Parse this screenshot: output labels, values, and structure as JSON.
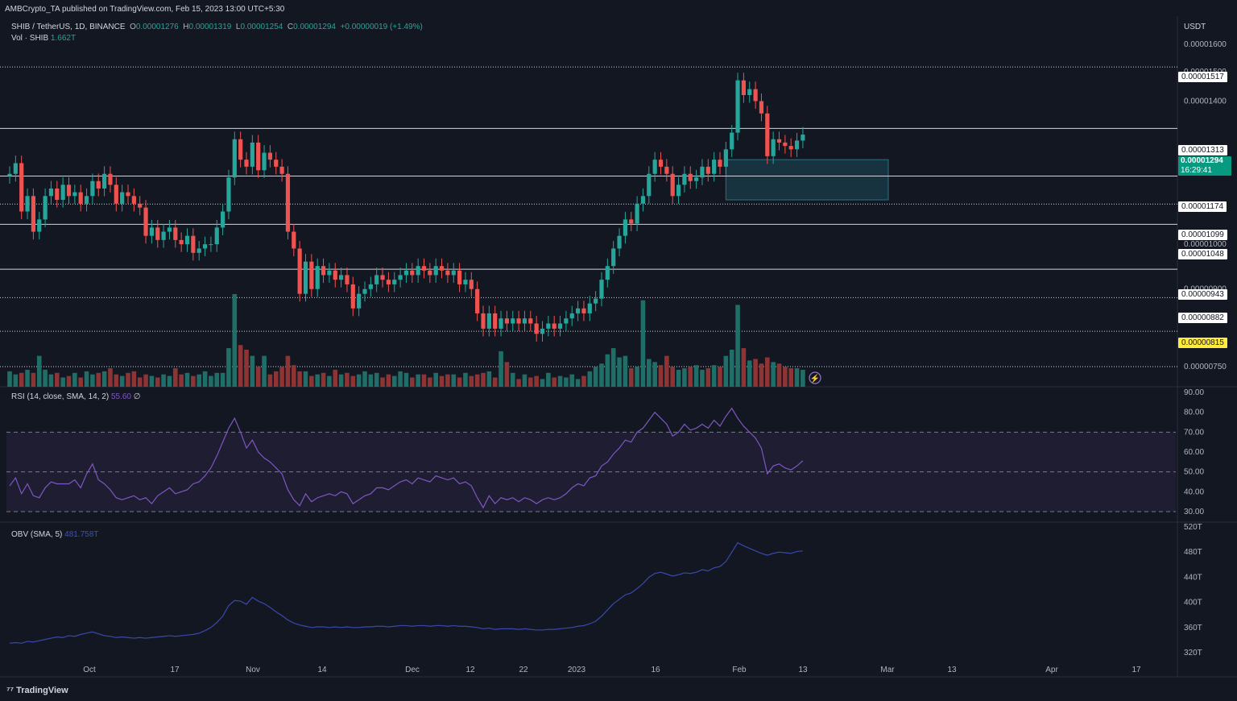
{
  "header": {
    "published": "AMBCrypto_TA published on TradingView.com, Feb 15, 2023 13:00 UTC+5:30",
    "symbol": "SHIB / TetherUS, 1D, BINANCE",
    "o_label": "O",
    "o": "0.00001276",
    "h_label": "H",
    "h": "0.00001319",
    "l_label": "L",
    "l": "0.00001254",
    "c_label": "C",
    "c": "0.00001294",
    "change": "+0.00000019 (+1.49%)",
    "vol_label": "Vol · SHIB",
    "vol": "1.662T",
    "rsi_label": "RSI (14, close, SMA, 14, 2)",
    "rsi_value": "55.60",
    "rsi_extra": "∅",
    "obv_label": "OBV (SMA, 5)",
    "obv_value": "481.758T",
    "currency": "USDT",
    "brand": "TradingView"
  },
  "colors": {
    "background": "#131722",
    "up": "#26a69a",
    "down": "#ef5350",
    "rsi_line": "#7e57c2",
    "obv_line": "#3949ab",
    "zone": "#1e4a5a"
  },
  "price_tags": {
    "levels": [
      "0.00001517",
      "0.00001313",
      "0.00001174",
      "0.00001099",
      "0.00001048",
      "0.00000943",
      "0.00000882",
      "0.00000815"
    ],
    "current": "0.00001294",
    "countdown": "16:29:41"
  },
  "chart_data": [
    {
      "type": "candlestick",
      "yticks": [
        "0.00001600",
        "0.00001500",
        "0.00001400",
        "0.00001200",
        "0.00001000",
        "0.00000900",
        "0.00000750"
      ],
      "xticks": [
        "Oct",
        "17",
        "Nov",
        "14",
        "Dec",
        "12",
        "22",
        "2023",
        "16",
        "Feb",
        "13",
        "Mar",
        "13",
        "Apr",
        "17"
      ],
      "horizontal_levels": [
        {
          "value": 1.517e-05,
          "style": "dotted"
        },
        {
          "value": 1.313e-05,
          "style": "solid"
        },
        {
          "value": 1.174e-05,
          "style": "solid"
        },
        {
          "value": 1.099e-05,
          "style": "dotted"
        },
        {
          "value": 1.048e-05,
          "style": "solid"
        },
        {
          "value": 9.43e-06,
          "style": "solid"
        },
        {
          "value": 8.82e-06,
          "style": "dotted"
        },
        {
          "value": 8.15e-06,
          "style": "dotted"
        },
        {
          "value": 7.5e-06,
          "style": "dotted"
        }
      ],
      "zone": {
        "from": "2023-01-28",
        "to": "2023-03-01",
        "low": 1.11e-05,
        "high": 1.22e-05
      },
      "close": [
        1.18,
        1.21,
        1.08,
        1.12,
        1.03,
        1.06,
        1.12,
        1.14,
        1.11,
        1.15,
        1.12,
        1.13,
        1.1,
        1.12,
        1.16,
        1.14,
        1.18,
        1.15,
        1.1,
        1.13,
        1.12,
        1.1,
        1.09,
        1.02,
        1.04,
        1.01,
        1.03,
        1.04,
        1.01,
        1.0,
        1.02,
        0.98,
        0.99,
        1.0,
        1.0,
        1.04,
        1.08,
        1.17,
        1.28,
        1.22,
        1.2,
        1.27,
        1.19,
        1.24,
        1.22,
        1.2,
        1.18,
        1.03,
        0.99,
        0.89,
        0.96,
        0.9,
        0.95,
        0.93,
        0.94,
        0.92,
        0.93,
        0.91,
        0.86,
        0.89,
        0.9,
        0.91,
        0.93,
        0.92,
        0.91,
        0.92,
        0.93,
        0.94,
        0.93,
        0.95,
        0.94,
        0.93,
        0.95,
        0.94,
        0.93,
        0.94,
        0.91,
        0.92,
        0.9,
        0.85,
        0.82,
        0.85,
        0.82,
        0.84,
        0.83,
        0.84,
        0.83,
        0.84,
        0.83,
        0.81,
        0.82,
        0.83,
        0.82,
        0.83,
        0.84,
        0.85,
        0.86,
        0.85,
        0.87,
        0.88,
        0.92,
        0.95,
        0.99,
        1.02,
        1.06,
        1.05,
        1.1,
        1.12,
        1.18,
        1.22,
        1.2,
        1.18,
        1.12,
        1.15,
        1.18,
        1.16,
        1.17,
        1.2,
        1.18,
        1.22,
        1.2,
        1.25,
        1.3,
        1.47,
        1.42,
        1.44,
        1.4,
        1.36,
        1.23,
        1.28,
        1.27,
        1.26,
        1.25,
        1.276,
        1.294
      ],
      "volume": [
        1.0,
        0.8,
        0.9,
        1.1,
        0.9,
        2.0,
        1.1,
        0.8,
        0.9,
        0.6,
        0.7,
        0.9,
        0.6,
        1.0,
        0.8,
        0.9,
        1.0,
        1.2,
        0.8,
        0.7,
        0.9,
        1.0,
        0.6,
        0.8,
        0.7,
        0.6,
        0.8,
        0.7,
        1.2,
        0.8,
        0.9,
        0.7,
        0.8,
        1.0,
        0.7,
        0.9,
        0.9,
        2.5,
        6.0,
        2.7,
        2.4,
        2.0,
        1.3,
        2.0,
        0.8,
        1.0,
        1.3,
        2.0,
        1.4,
        1.0,
        1.0,
        0.7,
        0.8,
        0.9,
        0.7,
        1.1,
        0.8,
        0.9,
        0.7,
        0.8,
        1.0,
        0.8,
        0.9,
        0.6,
        0.8,
        0.7,
        1.0,
        0.9,
        0.6,
        0.8,
        0.8,
        0.6,
        0.9,
        0.7,
        0.8,
        0.8,
        0.6,
        0.9,
        0.7,
        0.8,
        0.9,
        1.0,
        0.6,
        2.3,
        1.6,
        0.9,
        0.5,
        0.8,
        0.6,
        0.7,
        0.5,
        0.9,
        0.6,
        0.7,
        0.6,
        0.8,
        0.5,
        0.7,
        1.0,
        1.3,
        1.5,
        2.1,
        2.5,
        1.9,
        2.0,
        1.2,
        1.3,
        5.6,
        1.8,
        1.6,
        1.4,
        2.0,
        1.3,
        1.1,
        1.2,
        1.3,
        1.4,
        1.1,
        1.2,
        1.4,
        1.3,
        2.0,
        2.4,
        5.3,
        2.5,
        1.7,
        1.8,
        1.5,
        1.9,
        1.6,
        1.5,
        1.3,
        1.2,
        1.2,
        1.1
      ]
    },
    {
      "type": "line",
      "name": "RSI",
      "yticks": [
        "90.00",
        "80.00",
        "70.00",
        "60.00",
        "50.00",
        "40.00",
        "30.00"
      ],
      "bands": [
        30,
        50,
        70
      ],
      "values": [
        43,
        47,
        39,
        44,
        38,
        37,
        42,
        45,
        44,
        44,
        44,
        46,
        42,
        49,
        54,
        46,
        44,
        41,
        37,
        36,
        37,
        38,
        36,
        37,
        34,
        38,
        40,
        42,
        39,
        40,
        41,
        44,
        45,
        48,
        52,
        58,
        65,
        72,
        77,
        70,
        62,
        66,
        60,
        57,
        55,
        52,
        49,
        41,
        36,
        33,
        39,
        35,
        37,
        38,
        39,
        38,
        40,
        39,
        34,
        36,
        38,
        39,
        42,
        42,
        41,
        43,
        45,
        46,
        44,
        47,
        46,
        45,
        48,
        47,
        46,
        47,
        44,
        45,
        43,
        37,
        32,
        38,
        34,
        37,
        36,
        37,
        35,
        37,
        36,
        34,
        36,
        37,
        36,
        37,
        39,
        42,
        44,
        43,
        47,
        48,
        53,
        55,
        59,
        62,
        66,
        65,
        70,
        72,
        76,
        80,
        77,
        74,
        68,
        70,
        74,
        71,
        72,
        74,
        72,
        76,
        73,
        78,
        82,
        77,
        73,
        70,
        67,
        62,
        49,
        53,
        54,
        52,
        51,
        53,
        55.6
      ]
    },
    {
      "type": "line",
      "name": "OBV",
      "yticks": [
        "520T",
        "480T",
        "440T",
        "400T",
        "360T",
        "320T"
      ],
      "values": [
        335,
        336,
        335,
        338,
        337,
        339,
        341,
        343,
        345,
        344,
        347,
        346,
        349,
        351,
        353,
        350,
        347,
        346,
        344,
        345,
        344,
        343,
        344,
        343,
        344,
        345,
        346,
        347,
        346,
        347,
        348,
        349,
        351,
        355,
        360,
        368,
        378,
        395,
        403,
        402,
        397,
        408,
        402,
        398,
        392,
        385,
        379,
        372,
        367,
        364,
        362,
        360,
        361,
        361,
        360,
        361,
        360,
        361,
        360,
        360,
        361,
        361,
        362,
        362,
        361,
        362,
        363,
        363,
        362,
        363,
        363,
        362,
        363,
        363,
        362,
        363,
        362,
        362,
        361,
        360,
        358,
        359,
        357,
        358,
        358,
        358,
        357,
        358,
        357,
        356,
        356,
        357,
        357,
        358,
        359,
        360,
        362,
        363,
        366,
        370,
        378,
        388,
        398,
        405,
        412,
        415,
        422,
        430,
        440,
        446,
        448,
        445,
        442,
        444,
        447,
        446,
        448,
        452,
        450,
        455,
        457,
        465,
        480,
        495,
        490,
        486,
        482,
        478,
        475,
        478,
        480,
        479,
        478,
        481,
        481.8
      ]
    }
  ]
}
